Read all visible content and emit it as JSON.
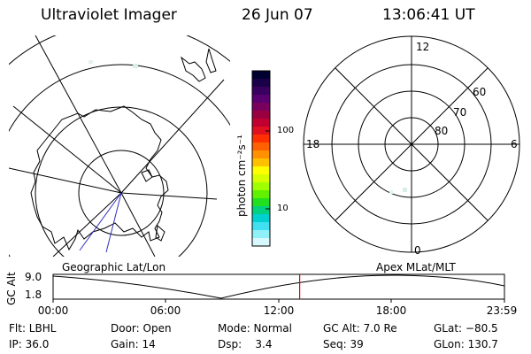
{
  "header": {
    "title": "Ultraviolet Imager",
    "date": "26 Jun 07",
    "time": "13:06:41 UT"
  },
  "colorbar": {
    "unit_label": "photon cm⁻²s⁻¹",
    "ticks": [
      "100",
      "10"
    ],
    "colors": [
      "#000030",
      "#1a0048",
      "#3a0060",
      "#5a0070",
      "#7a0060",
      "#9a0040",
      "#c00030",
      "#e01020",
      "#ff3000",
      "#ff6000",
      "#ff9000",
      "#ffc000",
      "#ffff00",
      "#d8ff00",
      "#a0ff00",
      "#60f000",
      "#20e020",
      "#00d080",
      "#00d0d0",
      "#40e0f0",
      "#90f0f8",
      "#d8f8ff"
    ]
  },
  "right_plot": {
    "mlt_labels": {
      "top": "12",
      "left": "18",
      "right": "6",
      "bottom": "0"
    },
    "mlat_labels": [
      "60",
      "70",
      "80"
    ]
  },
  "timeline": {
    "left_caption": "Geographic Lat/Lon",
    "right_caption": "Apex MLat/MLT",
    "y_axis_label": "GC Alt",
    "y_ticks": [
      "9.0",
      "1.8"
    ],
    "x_ticks": [
      "00:00",
      "06:00",
      "12:00",
      "18:00",
      "23:59"
    ],
    "current_marker_hours": 13.11,
    "marker_color": "#e00000"
  },
  "info": {
    "row1": {
      "flt": "Flt: LBHL",
      "door": "Door: Open",
      "mode": "Mode: Normal",
      "gcalt": "GC Alt: 7.0 Re",
      "glat": "GLat: −80.5"
    },
    "row2": {
      "ip": "IP: 36.0",
      "gain": "Gain: 14",
      "dsp": "Dsp:    3.4",
      "seq": "Seq: 39",
      "glon": "GLon: 130.7"
    }
  }
}
